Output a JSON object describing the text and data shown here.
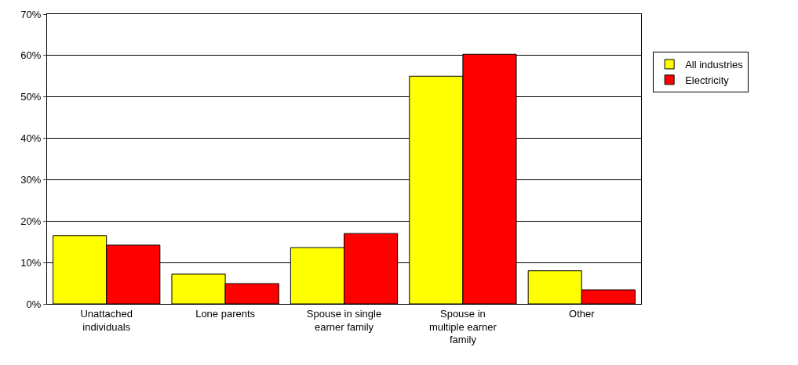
{
  "chart_data": {
    "type": "bar",
    "categories": [
      "Unattached individuals",
      "Lone parents",
      "Spouse in single earner family",
      "Spouse in multiple earner family",
      "Other"
    ],
    "series": [
      {
        "name": "All industries",
        "color": "#ffff00",
        "values": [
          16.5,
          7.2,
          13.6,
          55,
          8
        ]
      },
      {
        "name": "Electricity",
        "color": "#ff0000",
        "values": [
          14.2,
          4.9,
          17,
          60.3,
          3.4
        ]
      }
    ],
    "ylim": [
      0,
      70
    ],
    "yticks": [
      {
        "value": 0,
        "label": "0%"
      },
      {
        "value": 10,
        "label": "10%"
      },
      {
        "value": 20,
        "label": "20%"
      },
      {
        "value": 30,
        "label": "30%"
      },
      {
        "value": 40,
        "label": "40%"
      },
      {
        "value": 50,
        "label": "50%"
      },
      {
        "value": 60,
        "label": "60%"
      },
      {
        "value": 70,
        "label": "70%"
      }
    ],
    "grid": "y",
    "legend": "right"
  }
}
